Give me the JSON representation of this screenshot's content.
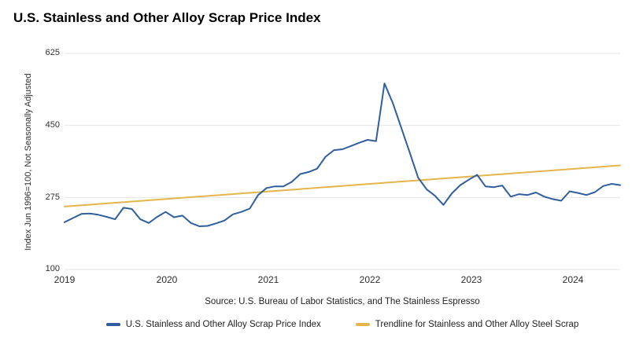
{
  "source": "Source: U.S. Bureau of Labor Statistics, and The Stainless Espresso",
  "colors": {
    "series_blue": "#2f5f9e",
    "trendline_gold": "#e3b54a",
    "gridline": "#e4e4e4",
    "tick_text": "#2e2e2e",
    "title_text": "#000000"
  },
  "chart_data": {
    "type": "line",
    "title": "U.S. Stainless and Other Alloy Scrap Price Index",
    "ylabel": "Index Jun 1996=100, Not Seasonally Adjusted",
    "xlabel": "",
    "ylim": [
      100,
      625
    ],
    "y_ticks": [
      625,
      450,
      275,
      100
    ],
    "x_tick_labels": [
      "2019",
      "2020",
      "2021",
      "2022",
      "2023",
      "2024"
    ],
    "frequency": "monthly",
    "x_start": "2019-01",
    "x_end": "2024-07",
    "grid": true,
    "legend_position": "bottom",
    "series": [
      {
        "name": "U.S. Stainless and Other Alloy Scrap Price Index",
        "color": "#2f5f9e",
        "values": [
          215,
          225,
          235,
          236,
          233,
          228,
          222,
          250,
          247,
          222,
          213,
          228,
          240,
          227,
          231,
          213,
          205,
          206,
          212,
          219,
          234,
          240,
          248,
          281,
          298,
          302,
          302,
          313,
          332,
          337,
          345,
          374,
          390,
          392,
          400,
          408,
          415,
          412,
          552,
          504,
          444,
          384,
          323,
          295,
          279,
          257,
          285,
          305,
          318,
          330,
          302,
          300,
          304,
          277,
          283,
          281,
          287,
          277,
          271,
          267,
          290,
          286,
          281,
          288,
          303,
          308,
          305
        ]
      },
      {
        "name": "Trendline for Stainless and Other Alloy Steel Scrap",
        "color": "#e3b54a",
        "trend": {
          "start_value": 253,
          "end_value": 353
        }
      }
    ]
  }
}
